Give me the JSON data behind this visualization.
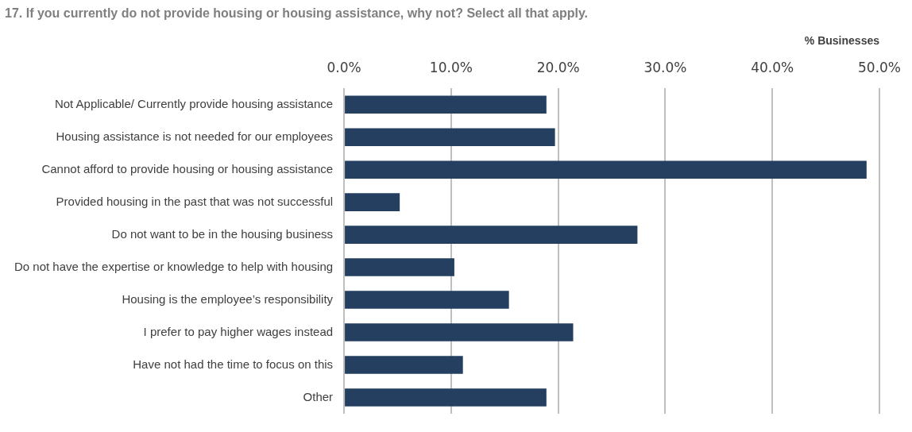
{
  "chart_data": {
    "type": "bar",
    "orientation": "horizontal",
    "title": "17. If you currently do not provide housing or housing assistance, why not? Select all that apply.",
    "xlabel": "% Businesses",
    "categories": [
      "Not Applicable/ Currently provide housing assistance",
      "Housing assistance is not needed for our employees",
      "Cannot afford to provide housing or housing assistance",
      "Provided housing in the past that was not successful",
      "Do not want to be in the housing business",
      "Do not have the expertise or knowledge to help with housing",
      "Housing is the employee’s responsibility",
      "I prefer to pay higher wages instead",
      "Have not had the time to focus on this",
      "Other"
    ],
    "values": [
      18.9,
      19.7,
      48.8,
      5.2,
      27.4,
      10.3,
      15.4,
      21.4,
      11.1,
      18.9
    ],
    "color": "#243f60",
    "xlim": [
      0,
      50
    ],
    "xticks": [
      {
        "value": 0,
        "label": "0.0%"
      },
      {
        "value": 10,
        "label": "10.0%"
      },
      {
        "value": 20,
        "label": "20.0%"
      },
      {
        "value": 30,
        "label": "30.0%"
      },
      {
        "value": 40,
        "label": "40.0%"
      },
      {
        "value": 50,
        "label": "50.0%"
      }
    ],
    "grid": "x",
    "legend": false
  }
}
